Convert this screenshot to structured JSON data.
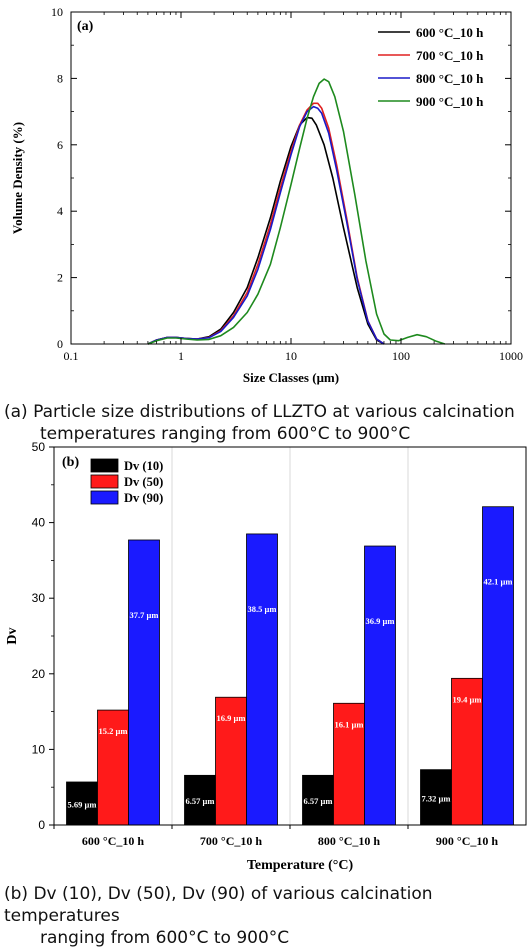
{
  "captions": {
    "a": {
      "line1": "(a) Particle size distributions of LLZTO at various calcination",
      "line2": "temperatures ranging from 600°C to 900°C"
    },
    "b": {
      "line1": "(b) Dv (10), Dv (50), Dv (90) of various calcination temperatures",
      "line2": "ranging from 600°C to 900°C"
    }
  },
  "chart_data": [
    {
      "type": "line",
      "panel_label": "(a)",
      "xlabel": "Size Classes (μm)",
      "ylabel": "Volume Density (%)",
      "xscale": "log",
      "xlim": [
        0.1,
        1000
      ],
      "ylim": [
        0,
        10
      ],
      "xticks": [
        "0.1",
        "1",
        "10",
        "100",
        "1000"
      ],
      "yticks": [
        "0",
        "2",
        "4",
        "6",
        "8",
        "10"
      ],
      "legend_position": "top-right",
      "series": [
        {
          "name": "600 °C_10 h",
          "color": "#000000",
          "x": [
            0.5,
            0.6,
            0.75,
            0.9,
            1.1,
            1.4,
            1.8,
            2.3,
            3,
            4,
            5,
            6.5,
            8,
            10,
            12,
            14,
            15.5,
            17,
            20,
            24,
            30,
            40,
            50,
            60,
            70
          ],
          "y": [
            0,
            0.12,
            0.2,
            0.2,
            0.17,
            0.15,
            0.22,
            0.45,
            0.95,
            1.7,
            2.6,
            3.8,
            4.9,
            5.95,
            6.6,
            6.82,
            6.8,
            6.6,
            6.0,
            5.0,
            3.5,
            1.7,
            0.6,
            0.12,
            0
          ]
        },
        {
          "name": "700 °C_10 h",
          "color": "#e02020",
          "x": [
            0.5,
            0.6,
            0.75,
            0.9,
            1.1,
            1.4,
            1.8,
            2.3,
            3,
            4,
            5,
            6.5,
            8,
            10,
            12,
            14,
            16,
            17.5,
            19,
            22,
            26,
            32,
            40,
            50,
            60,
            70
          ],
          "y": [
            0,
            0.12,
            0.2,
            0.2,
            0.17,
            0.15,
            0.2,
            0.4,
            0.85,
            1.55,
            2.4,
            3.6,
            4.7,
            5.8,
            6.6,
            7.05,
            7.25,
            7.25,
            7.1,
            6.5,
            5.4,
            3.8,
            2.0,
            0.7,
            0.15,
            0
          ]
        },
        {
          "name": "800 °C_10 h",
          "color": "#1a1ac8",
          "x": [
            0.5,
            0.6,
            0.75,
            0.9,
            1.1,
            1.4,
            1.8,
            2.3,
            3,
            4,
            5,
            6.5,
            8,
            10,
            12,
            14,
            16,
            17.5,
            19,
            22,
            26,
            32,
            40,
            50,
            60,
            70
          ],
          "y": [
            0,
            0.12,
            0.2,
            0.2,
            0.17,
            0.15,
            0.19,
            0.38,
            0.8,
            1.45,
            2.25,
            3.45,
            4.55,
            5.7,
            6.55,
            7.0,
            7.15,
            7.1,
            6.95,
            6.35,
            5.25,
            3.7,
            1.95,
            0.68,
            0.15,
            0
          ]
        },
        {
          "name": "900 °C_10 h",
          "color": "#1e8a1e",
          "x": [
            0.5,
            0.6,
            0.75,
            0.9,
            1.1,
            1.4,
            1.8,
            2.3,
            3,
            4,
            5,
            6.5,
            8,
            10,
            12,
            14,
            16,
            18,
            20,
            22,
            25,
            30,
            38,
            48,
            60,
            70,
            80,
            95,
            115,
            140,
            170,
            210,
            250
          ],
          "y": [
            0,
            0.1,
            0.18,
            0.18,
            0.15,
            0.12,
            0.14,
            0.25,
            0.5,
            0.95,
            1.5,
            2.4,
            3.5,
            4.8,
            5.9,
            6.8,
            7.45,
            7.85,
            7.98,
            7.9,
            7.45,
            6.4,
            4.5,
            2.5,
            0.9,
            0.3,
            0.12,
            0.1,
            0.2,
            0.28,
            0.22,
            0.08,
            0
          ]
        }
      ]
    },
    {
      "type": "bar",
      "panel_label": "(b)",
      "xlabel": "Temperature (°C)",
      "ylabel": "Dv",
      "ylim": [
        0,
        50
      ],
      "yticks": [
        "0",
        "10",
        "20",
        "30",
        "40",
        "50"
      ],
      "legend_position": "top-left",
      "grid": "vertical separators",
      "categories": [
        "600 °C_10 h",
        "700 °C_10 h",
        "800 °C_10 h",
        "900 °C_10 h"
      ],
      "series": [
        {
          "name": "Dv (10)",
          "color": "#000000",
          "values": [
            5.69,
            6.57,
            6.57,
            7.32
          ],
          "labels": [
            "5.69 μm",
            "6.57 μm",
            "6.57 μm",
            "7.32 μm"
          ]
        },
        {
          "name": "Dv (50)",
          "color": "#ff1a1a",
          "values": [
            15.2,
            16.9,
            16.1,
            19.4
          ],
          "labels": [
            "15.2 μm",
            "16.9 μm",
            "16.1 μm",
            "19.4 μm"
          ]
        },
        {
          "name": "Dv (90)",
          "color": "#1a1aff",
          "values": [
            37.7,
            38.5,
            36.9,
            42.1
          ],
          "labels": [
            "37.7 μm",
            "38.5 μm",
            "36.9 μm",
            "42.1 μm"
          ]
        }
      ]
    }
  ]
}
